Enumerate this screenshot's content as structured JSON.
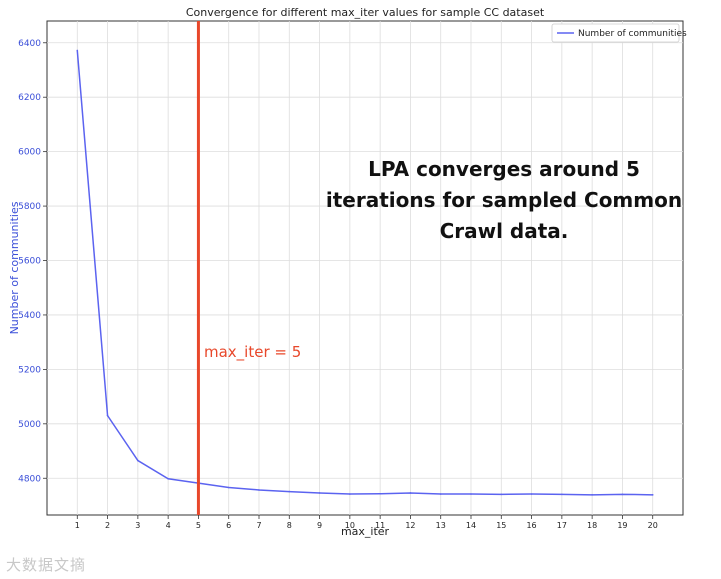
{
  "chart_data": {
    "type": "line",
    "title": "Convergence for different max_iter values for sample CC dataset",
    "xlabel": "max_iter",
    "ylabel": "Number of communities",
    "x": [
      1,
      2,
      3,
      4,
      5,
      6,
      7,
      8,
      9,
      10,
      11,
      12,
      13,
      14,
      15,
      16,
      17,
      18,
      19,
      20
    ],
    "series": [
      {
        "name": "Number of communities",
        "color": "#5b63f0",
        "values": [
          6372,
          5030,
          4865,
          4798,
          4782,
          4766,
          4757,
          4751,
          4746,
          4742,
          4743,
          4746,
          4742,
          4742,
          4741,
          4742,
          4741,
          4739,
          4741,
          4739
        ]
      }
    ],
    "xlim": [
      0,
      21
    ],
    "ylim": [
      4665,
      6480
    ],
    "yticks": [
      4800,
      5000,
      5200,
      5400,
      5600,
      5800,
      6000,
      6200,
      6400
    ],
    "grid": true,
    "legend_position": "top-right",
    "vline": {
      "x": 5,
      "color": "#e8472a",
      "label": "max_iter = 5"
    },
    "annotation": {
      "lines": [
        "LPA converges around 5",
        "iterations for sampled Common",
        "Crawl data."
      ]
    }
  },
  "watermark": "大数据文摘"
}
